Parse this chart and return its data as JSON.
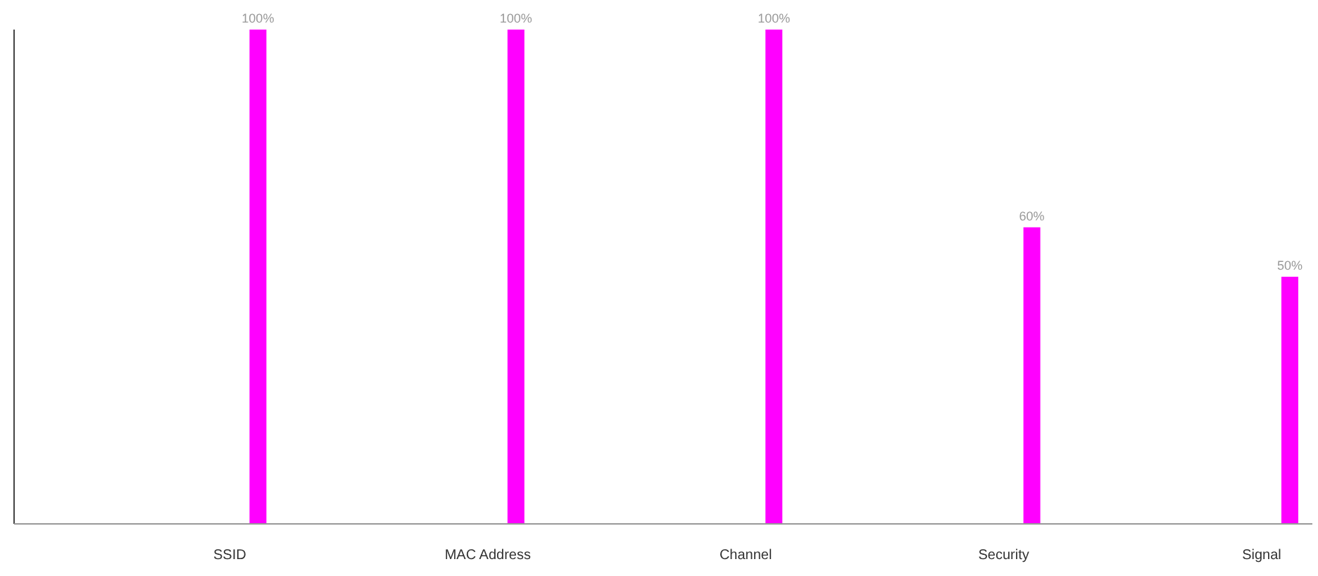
{
  "chart_data": {
    "type": "bar",
    "categories": [
      "SSID",
      "MAC Address",
      "Channel",
      "Security",
      "Signal"
    ],
    "values": [
      100,
      100,
      100,
      60,
      50
    ],
    "value_labels": [
      "100%",
      "100%",
      "100%",
      "60%",
      "50%"
    ],
    "color": "#ff00ff",
    "ylim": [
      0,
      100
    ]
  }
}
